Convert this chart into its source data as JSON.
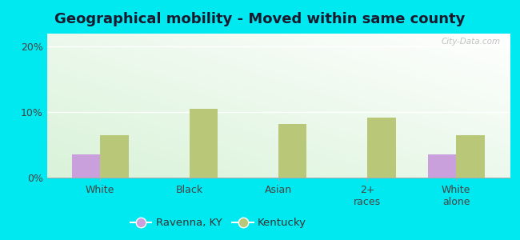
{
  "title": "Geographical mobility - Moved within same county",
  "categories": [
    "White",
    "Black",
    "Asian",
    "2+\nraces",
    "White\nalone"
  ],
  "ravenna_values": [
    3.5,
    0.0,
    0.0,
    0.0,
    3.5
  ],
  "kentucky_values": [
    6.5,
    10.5,
    8.2,
    9.2,
    6.5
  ],
  "ravenna_color": "#c9a0dc",
  "kentucky_color": "#b8c878",
  "background_outer": "#00e8f0",
  "ylim": [
    0,
    22
  ],
  "yticks": [
    0,
    10,
    20
  ],
  "ytick_labels": [
    "0%",
    "10%",
    "20%"
  ],
  "bar_width": 0.32,
  "title_fontsize": 13,
  "tick_fontsize": 9,
  "legend_labels": [
    "Ravenna, KY",
    "Kentucky"
  ],
  "watermark": "City-Data.com"
}
